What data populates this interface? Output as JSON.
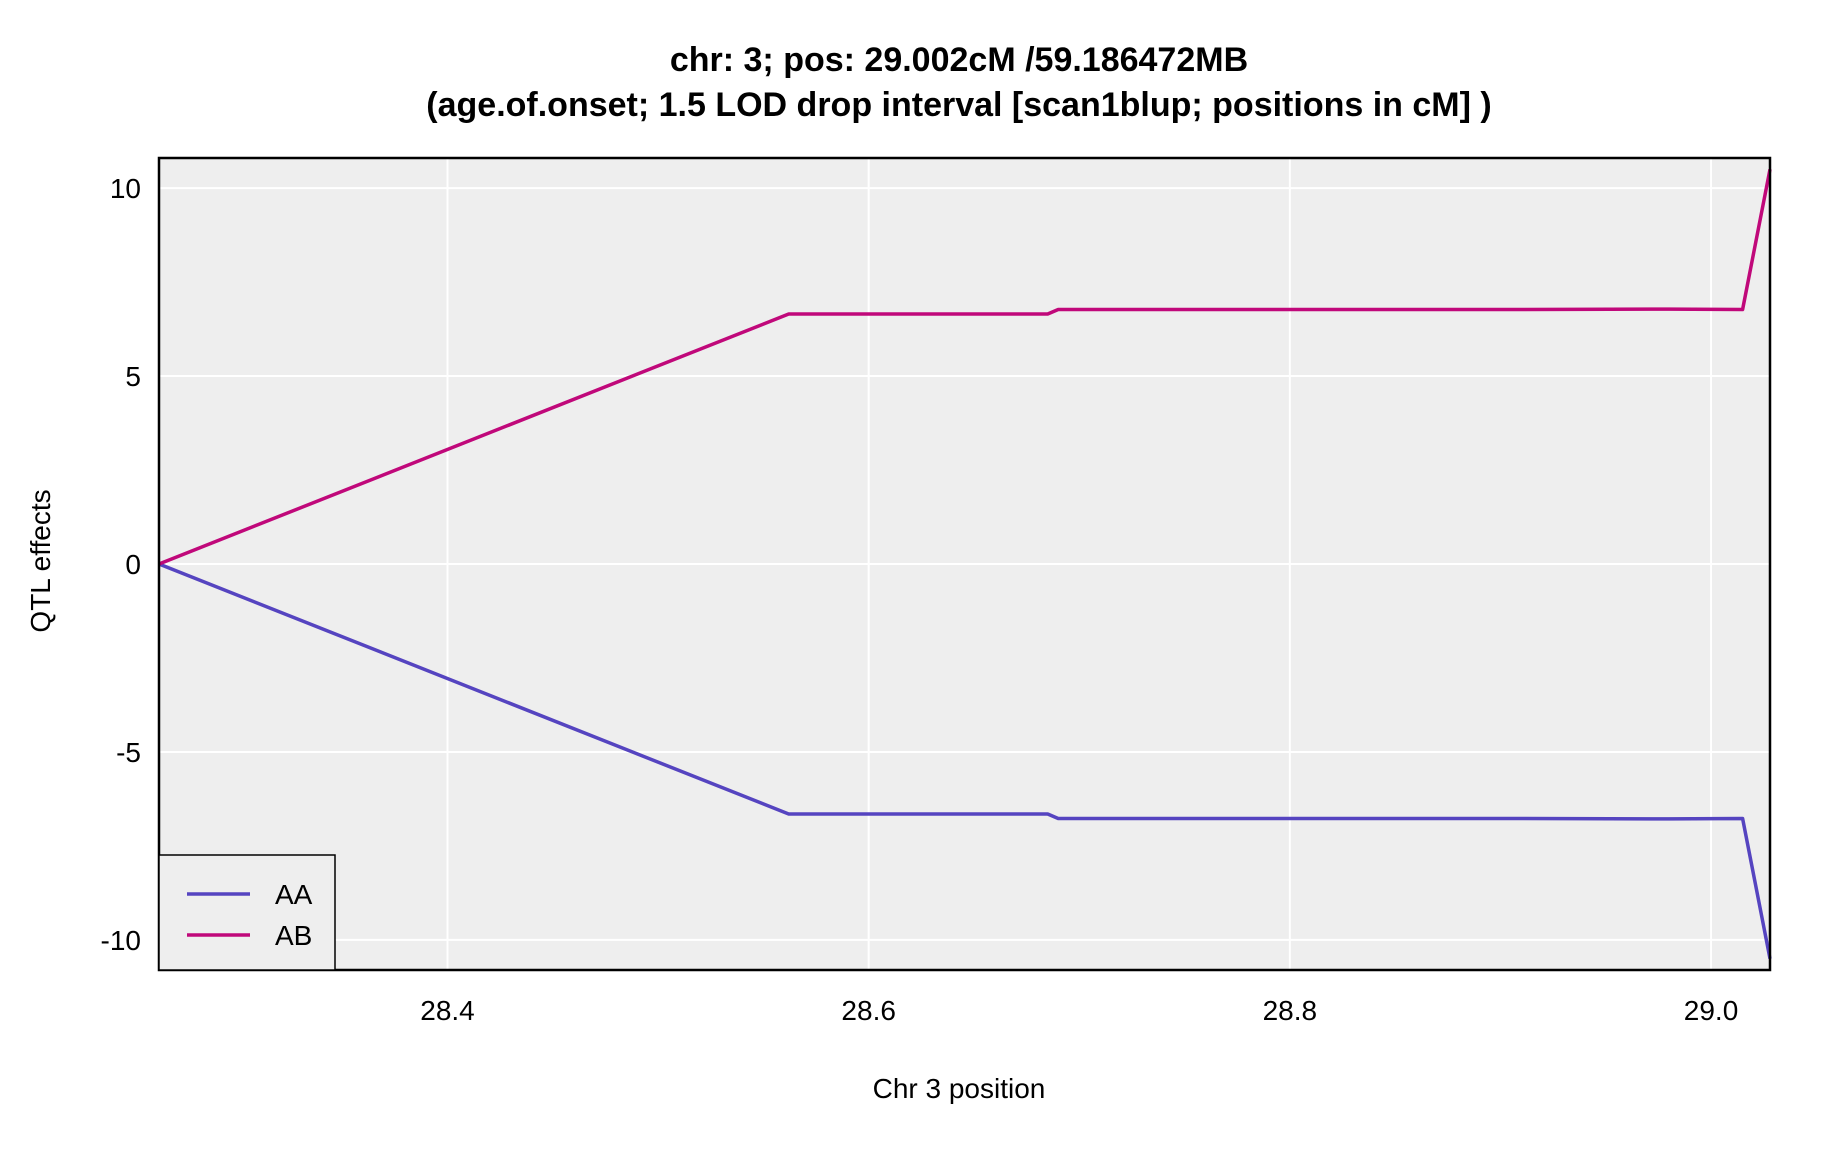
{
  "chart_data": {
    "type": "line",
    "title_line1": "chr: 3; pos: 29.002cM /59.186472MB",
    "title_line2": "(age.of.onset; 1.5 LOD drop interval [scan1blup; positions in cM] )",
    "xlabel": "Chr 3 position",
    "ylabel": "QTL effects",
    "xlim": [
      28.263,
      29.028
    ],
    "ylim": [
      -10.8,
      10.8
    ],
    "xticks": [
      28.4,
      28.6,
      28.8,
      29.0
    ],
    "xtick_labels": [
      "28.4",
      "28.6",
      "28.8",
      "29.0"
    ],
    "yticks": [
      -10,
      -5,
      0,
      5,
      10
    ],
    "ytick_labels": [
      "-10",
      "-5",
      "0",
      "5",
      "10"
    ],
    "grid": true,
    "legend_position": "bottom-left",
    "series": [
      {
        "name": "AA",
        "color": "#5544c0",
        "x": [
          28.263,
          28.562,
          28.685,
          28.69,
          28.8,
          28.9,
          28.98,
          29.015,
          29.028
        ],
        "y": [
          0,
          -6.65,
          -6.65,
          -6.77,
          -6.77,
          -6.77,
          -6.78,
          -6.77,
          -10.5
        ]
      },
      {
        "name": "AB",
        "color": "#c0087a",
        "x": [
          28.263,
          28.562,
          28.685,
          28.69,
          28.8,
          28.9,
          28.98,
          29.015,
          29.028
        ],
        "y": [
          0,
          6.65,
          6.65,
          6.77,
          6.77,
          6.77,
          6.78,
          6.77,
          10.5
        ]
      }
    ]
  }
}
